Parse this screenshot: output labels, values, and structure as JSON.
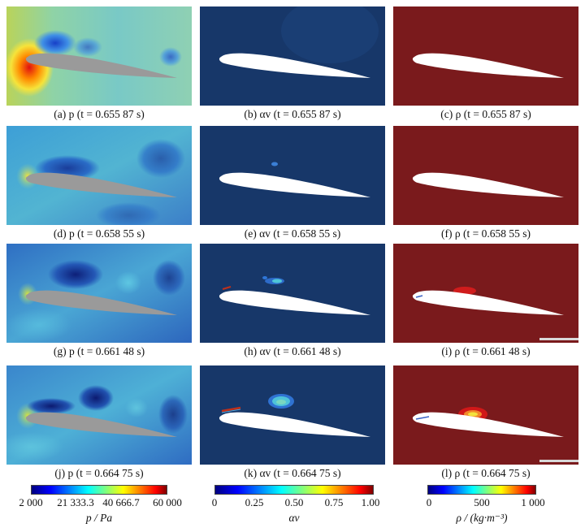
{
  "panels": [
    {
      "caption": "(a) p (t = 0.655 87 s)",
      "field": "pressure"
    },
    {
      "caption": "(b) αv (t = 0.655 87 s)",
      "field": "vapor_fraction"
    },
    {
      "caption": "(c) ρ (t = 0.655 87 s)",
      "field": "density"
    },
    {
      "caption": "(d) p (t = 0.658 55 s)",
      "field": "pressure"
    },
    {
      "caption": "(e) αv (t = 0.658 55 s)",
      "field": "vapor_fraction"
    },
    {
      "caption": "(f) ρ (t = 0.658 55 s)",
      "field": "density"
    },
    {
      "caption": "(g) p (t = 0.661 48 s)",
      "field": "pressure"
    },
    {
      "caption": "(h) αv (t = 0.661 48 s)",
      "field": "vapor_fraction"
    },
    {
      "caption": "(i) ρ (t = 0.661 48 s)",
      "field": "density"
    },
    {
      "caption": "(j) p (t = 0.664 75 s)",
      "field": "pressure"
    },
    {
      "caption": "(k) αv (t = 0.664 75 s)",
      "field": "vapor_fraction"
    },
    {
      "caption": "(l) ρ (t = 0.664 75 s)",
      "field": "density"
    }
  ],
  "colorbars": [
    {
      "title": "p / Pa",
      "ticks": [
        "2 000",
        "21 333.3",
        "40 666.7",
        "60 000"
      ]
    },
    {
      "title": "αv",
      "ticks": [
        "0",
        "0.25",
        "0.50",
        "0.75",
        "1.00"
      ]
    },
    {
      "title": "ρ / (kg·m⁻³)",
      "ticks": [
        "0",
        "500",
        "1 000"
      ]
    }
  ],
  "colors": {
    "jet": [
      "#00007f",
      "#0000ff",
      "#007fff",
      "#00ffff",
      "#7fff7f",
      "#ffff00",
      "#ff7f00",
      "#ff0000",
      "#7f0000"
    ],
    "pressure_bg": "#5fb4cf",
    "vapor_bg": "#173769",
    "density_bg": "#7a1a1c",
    "hydrofoil_pressure": "#9a9a9a",
    "hydrofoil_other": "#ffffff"
  }
}
